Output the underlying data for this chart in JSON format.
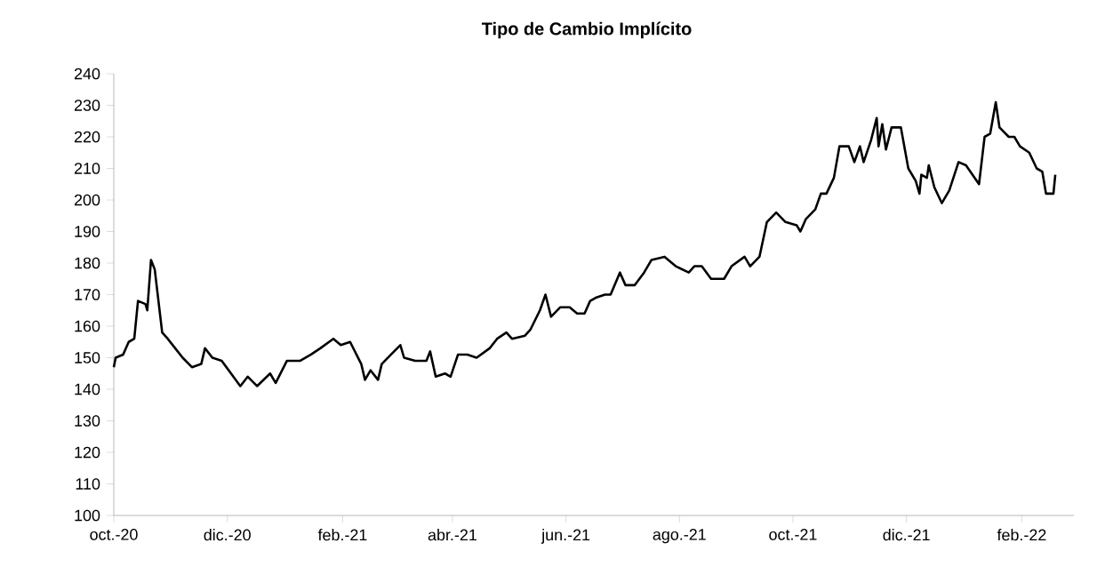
{
  "chart_data": {
    "type": "line",
    "title": "Tipo de Cambio Implícito",
    "x": [
      "2020-10-01",
      "2020-10-02",
      "2020-10-06",
      "2020-10-09",
      "2020-10-12",
      "2020-10-14",
      "2020-10-18",
      "2020-10-19",
      "2020-10-21",
      "2020-10-23",
      "2020-10-25",
      "2020-10-27",
      "2020-10-30",
      "2020-11-03",
      "2020-11-07",
      "2020-11-12",
      "2020-11-17",
      "2020-11-19",
      "2020-11-23",
      "2020-11-28",
      "2020-12-03",
      "2020-12-08",
      "2020-12-12",
      "2020-12-17",
      "2020-12-24",
      "2020-12-27",
      "2021-01-02",
      "2021-01-09",
      "2021-01-15",
      "2021-01-20",
      "2021-01-27",
      "2021-01-31",
      "2021-02-05",
      "2021-02-11",
      "2021-02-13",
      "2021-02-16",
      "2021-02-20",
      "2021-02-22",
      "2021-02-27",
      "2021-03-04",
      "2021-03-06",
      "2021-03-12",
      "2021-03-18",
      "2021-03-20",
      "2021-03-23",
      "2021-03-28",
      "2021-03-31",
      "2021-04-04",
      "2021-04-09",
      "2021-04-14",
      "2021-04-21",
      "2021-04-25",
      "2021-04-30",
      "2021-05-03",
      "2021-05-10",
      "2021-05-13",
      "2021-05-18",
      "2021-05-21",
      "2021-05-24",
      "2021-05-29",
      "2021-06-03",
      "2021-06-07",
      "2021-06-11",
      "2021-06-14",
      "2021-06-17",
      "2021-06-22",
      "2021-06-25",
      "2021-06-30",
      "2021-07-03",
      "2021-07-08",
      "2021-07-13",
      "2021-07-17",
      "2021-07-24",
      "2021-07-30",
      "2021-08-06",
      "2021-08-09",
      "2021-08-13",
      "2021-08-18",
      "2021-08-25",
      "2021-08-29",
      "2021-09-05",
      "2021-09-08",
      "2021-09-13",
      "2021-09-17",
      "2021-09-22",
      "2021-09-27",
      "2021-10-03",
      "2021-10-05",
      "2021-10-08",
      "2021-10-13",
      "2021-10-16",
      "2021-10-19",
      "2021-10-23",
      "2021-10-26",
      "2021-10-31",
      "2021-11-03",
      "2021-11-06",
      "2021-11-08",
      "2021-11-12",
      "2021-11-15",
      "2021-11-16",
      "2021-11-18",
      "2021-11-20",
      "2021-11-23",
      "2021-11-28",
      "2021-12-02",
      "2021-12-06",
      "2021-12-08",
      "2021-12-09",
      "2021-12-12",
      "2021-12-13",
      "2021-12-16",
      "2021-12-20",
      "2021-12-24",
      "2021-12-29",
      "2022-01-02",
      "2022-01-09",
      "2022-01-12",
      "2022-01-15",
      "2022-01-18",
      "2022-01-20",
      "2022-01-25",
      "2022-01-28",
      "2022-01-31",
      "2022-02-05",
      "2022-02-09",
      "2022-02-12",
      "2022-02-14",
      "2022-02-18",
      "2022-02-19"
    ],
    "series": [
      {
        "color": "#000000",
        "values": [
          147,
          150,
          151,
          155,
          156,
          168,
          167,
          165,
          181,
          178,
          168,
          158,
          156,
          153,
          150,
          147,
          148,
          153,
          150,
          149,
          145,
          141,
          144,
          141,
          145,
          142,
          149,
          149,
          151,
          153,
          156,
          154,
          155,
          148,
          143,
          146,
          143,
          148,
          151,
          154,
          150,
          149,
          149,
          152,
          144,
          145,
          144,
          151,
          151,
          150,
          153,
          156,
          158,
          156,
          157,
          159,
          165,
          170,
          163,
          166,
          166,
          164,
          164,
          168,
          169,
          170,
          170,
          177,
          173,
          173,
          177,
          181,
          182,
          179,
          177,
          179,
          179,
          175,
          175,
          179,
          182,
          179,
          182,
          193,
          196,
          193,
          192,
          190,
          194,
          197,
          202,
          202,
          207,
          217,
          217,
          212,
          217,
          212,
          219,
          226,
          217,
          224,
          216,
          223,
          223,
          210,
          206,
          202,
          208,
          207,
          211,
          204,
          199,
          203,
          212,
          211,
          205,
          220,
          221,
          231,
          223,
          220,
          220,
          217,
          215,
          210,
          209,
          202,
          202,
          208
        ]
      }
    ],
    "xlim": [
      "2020-10-01",
      "2022-03-01"
    ],
    "xticks": [
      {
        "value": "2020-10-01",
        "label": "oct.-20"
      },
      {
        "value": "2020-12-01",
        "label": "dic.-20"
      },
      {
        "value": "2021-02-01",
        "label": "feb.-21"
      },
      {
        "value": "2021-04-01",
        "label": "abr.-21"
      },
      {
        "value": "2021-06-01",
        "label": "jun.-21"
      },
      {
        "value": "2021-08-01",
        "label": "ago.-21"
      },
      {
        "value": "2021-10-01",
        "label": "oct.-21"
      },
      {
        "value": "2021-12-01",
        "label": "dic.-21"
      },
      {
        "value": "2022-02-01",
        "label": "feb.-22"
      }
    ],
    "ylim": [
      100,
      240
    ],
    "yticks": [
      100,
      110,
      120,
      130,
      140,
      150,
      160,
      170,
      180,
      190,
      200,
      210,
      220,
      230,
      240
    ],
    "grid": false,
    "marker": "none",
    "line_style": "solid"
  }
}
